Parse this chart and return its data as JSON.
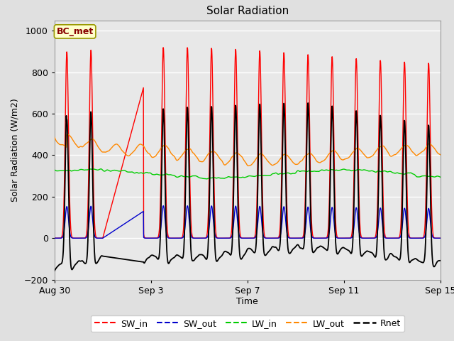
{
  "title": "Solar Radiation",
  "xlabel": "Time",
  "ylabel": "Solar Radiation (W/m2)",
  "legend_label": "BC_met",
  "series_names": [
    "SW_in",
    "SW_out",
    "LW_in",
    "LW_out",
    "Rnet"
  ],
  "series_colors": [
    "#ff0000",
    "#0000cc",
    "#00cc00",
    "#ff8800",
    "#000000"
  ],
  "ylim": [
    -200,
    1050
  ],
  "yticks": [
    -200,
    0,
    200,
    400,
    600,
    800,
    1000
  ],
  "xtick_labels": [
    "Aug 30",
    "Sep 3",
    "Sep 7",
    "Sep 11",
    "Sep 15"
  ],
  "xtick_positions": [
    0,
    4,
    8,
    12,
    16
  ],
  "bg_color": "#e0e0e0",
  "plot_bg_color": "#e8e8e8",
  "grid_color": "#ffffff",
  "annotation_box_facecolor": "#ffffcc",
  "annotation_box_edgecolor": "#999900",
  "annotation_text_color": "#880000",
  "n_days": 17,
  "dt_hours": 0.25,
  "gap_start_day": 2.0,
  "gap_end_day": 3.7
}
